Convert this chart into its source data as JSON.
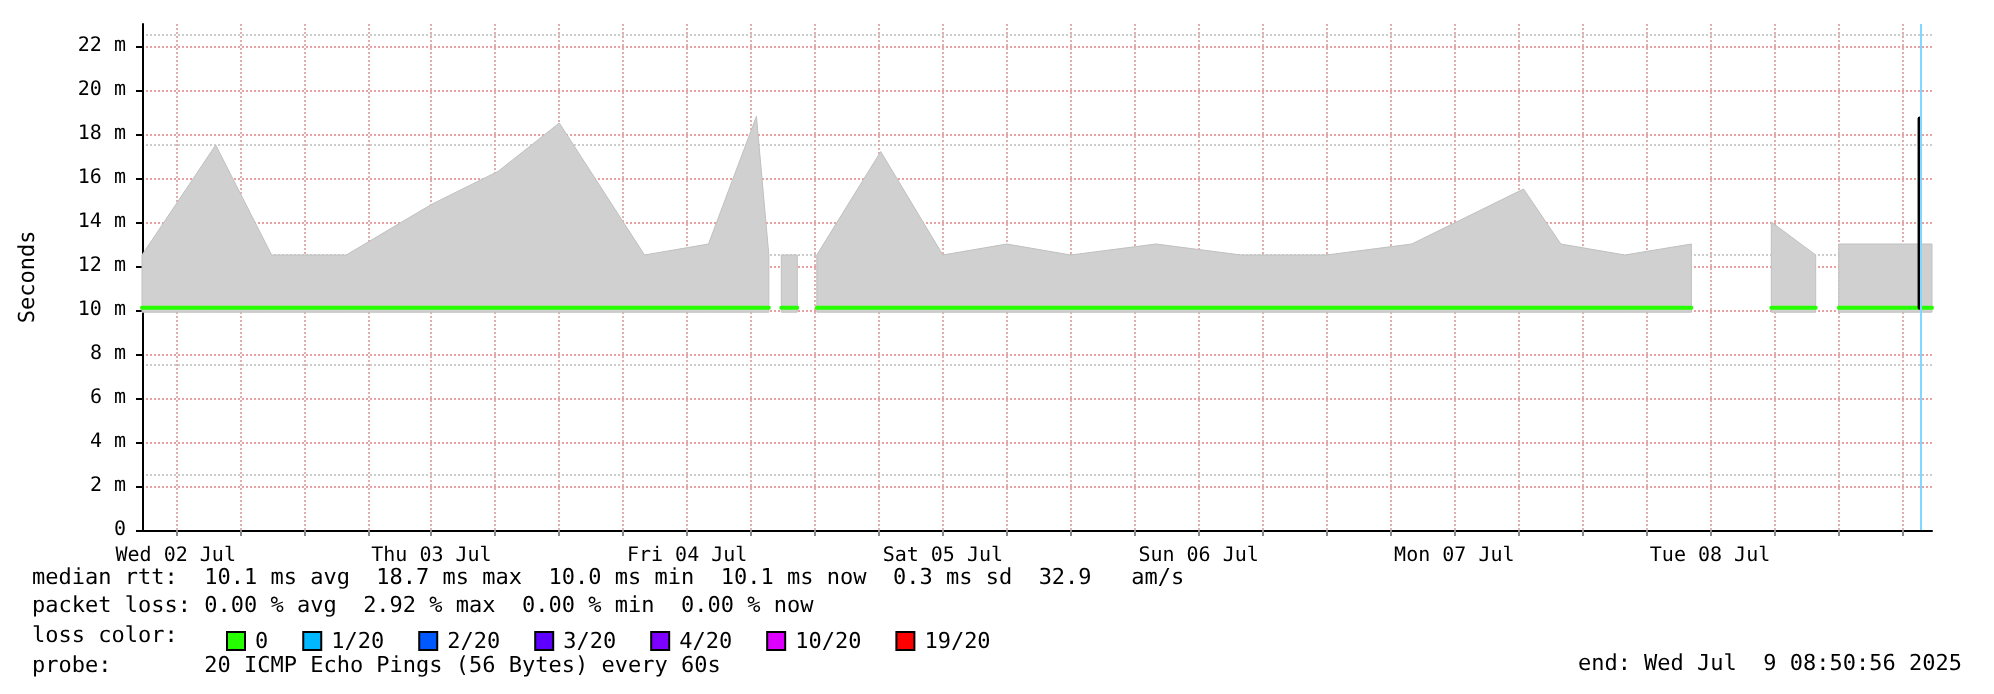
{
  "chart_data": {
    "type": "line",
    "ylabel": "Seconds",
    "xlim": [
      "2025-07-02T08:50",
      "2025-07-09T08:50"
    ],
    "xticks": [
      {
        "value": "2025-07-02T12:00",
        "label": "Wed 02 Jul"
      },
      {
        "value": "2025-07-02T18:00",
        "label": null
      },
      {
        "value": "2025-07-03T00:00",
        "label": null
      },
      {
        "value": "2025-07-03T06:00",
        "label": null
      },
      {
        "value": "2025-07-03T12:00",
        "label": "Thu 03 Jul"
      },
      {
        "value": "2025-07-03T18:00",
        "label": null
      },
      {
        "value": "2025-07-04T00:00",
        "label": null
      },
      {
        "value": "2025-07-04T06:00",
        "label": null
      },
      {
        "value": "2025-07-04T12:00",
        "label": "Fri 04 Jul"
      },
      {
        "value": "2025-07-04T18:00",
        "label": null
      },
      {
        "value": "2025-07-05T00:00",
        "label": null
      },
      {
        "value": "2025-07-05T06:00",
        "label": null
      },
      {
        "value": "2025-07-05T12:00",
        "label": "Sat 05 Jul"
      },
      {
        "value": "2025-07-05T18:00",
        "label": null
      },
      {
        "value": "2025-07-06T00:00",
        "label": null
      },
      {
        "value": "2025-07-06T06:00",
        "label": null
      },
      {
        "value": "2025-07-06T12:00",
        "label": "Sun 06 Jul"
      },
      {
        "value": "2025-07-06T18:00",
        "label": null
      },
      {
        "value": "2025-07-07T00:00",
        "label": null
      },
      {
        "value": "2025-07-07T06:00",
        "label": null
      },
      {
        "value": "2025-07-07T12:00",
        "label": "Mon 07 Jul"
      },
      {
        "value": "2025-07-07T18:00",
        "label": null
      },
      {
        "value": "2025-07-08T00:00",
        "label": null
      },
      {
        "value": "2025-07-08T06:00",
        "label": null
      },
      {
        "value": "2025-07-08T12:00",
        "label": "Tue 08 Jul"
      },
      {
        "value": "2025-07-08T18:00",
        "label": null
      },
      {
        "value": "2025-07-09T00:00",
        "label": null
      },
      {
        "value": "2025-07-09T06:00",
        "label": null
      }
    ],
    "ylim": [
      0,
      23
    ],
    "yticks": [
      {
        "value": 0,
        "label": "0"
      },
      {
        "value": 2,
        "label": "2 m"
      },
      {
        "value": 4,
        "label": "4 m"
      },
      {
        "value": 6,
        "label": "6 m"
      },
      {
        "value": 8,
        "label": "8 m"
      },
      {
        "value": 10,
        "label": "10 m"
      },
      {
        "value": 12,
        "label": "12 m"
      },
      {
        "value": 14,
        "label": "14 m"
      },
      {
        "value": 16,
        "label": "16 m"
      },
      {
        "value": 18,
        "label": "18 m"
      },
      {
        "value": 20,
        "label": "20 m"
      },
      {
        "value": 22,
        "label": "22 m"
      }
    ],
    "grid": true,
    "legend": "bottom left",
    "legend_title": "loss color:",
    "marker": "none",
    "line_style": "solid",
    "ref_lines": [
      {
        "axis": "x",
        "value": "2025-07-09T07:40",
        "color": "#80d8ff"
      }
    ],
    "series": [
      {
        "name": "0",
        "color": "#26ff00",
        "x": [
          "2025-07-02T08:50",
          "2025-07-02T15:45",
          "2025-07-02T21:00",
          "2025-07-03T04:00",
          "2025-07-03T12:00",
          "2025-07-03T18:15",
          "2025-07-04T00:00",
          "2025-07-04T08:00",
          "2025-07-04T14:00",
          "2025-07-04T18:30",
          "2025-07-04T19:40",
          "2025-07-04T20:15",
          "2025-07-04T20:50",
          "2025-07-04T22:20",
          "2025-07-04T23:15",
          "2025-07-05T00:10",
          "2025-07-05T06:10",
          "2025-07-05T12:00",
          "2025-07-05T18:00",
          "2025-07-06T00:00",
          "2025-07-06T08:00",
          "2025-07-06T16:00",
          "2025-07-07T00:00",
          "2025-07-07T08:00",
          "2025-07-07T18:30",
          "2025-07-07T22:00",
          "2025-07-08T04:00",
          "2025-07-08T10:15",
          "2025-07-08T12:00",
          "2025-07-08T17:45",
          "2025-07-08T21:55",
          "2025-07-08T22:40",
          "2025-07-09T00:05",
          "2025-07-09T08:50"
        ],
        "values": [
          10.1,
          10.1,
          10.1,
          10.1,
          10.1,
          10.1,
          10.1,
          10.1,
          10.1,
          10.1,
          10.1,
          null,
          10.1,
          10.1,
          null,
          10.1,
          10.1,
          10.1,
          10.1,
          10.1,
          10.1,
          10.1,
          10.1,
          10.1,
          10.1,
          10.1,
          10.1,
          10.1,
          null,
          10.1,
          10.1,
          null,
          10.1,
          10.1
        ],
        "lower": [
          9.9,
          9.9,
          9.9,
          9.9,
          9.9,
          9.9,
          9.9,
          9.9,
          9.9,
          9.9,
          9.9,
          null,
          9.9,
          9.9,
          null,
          9.9,
          9.9,
          9.9,
          9.9,
          9.9,
          9.9,
          9.9,
          9.9,
          9.9,
          9.9,
          9.9,
          9.9,
          9.9,
          null,
          9.9,
          9.9,
          null,
          9.9,
          9.9
        ],
        "upper": [
          12.5,
          17.5,
          12.5,
          12.5,
          14.8,
          16.3,
          18.5,
          12.5,
          13,
          18.8,
          12.5,
          null,
          12.5,
          12.5,
          null,
          12.5,
          17.2,
          12.5,
          13,
          12.5,
          13,
          12.5,
          12.5,
          13,
          15.5,
          13,
          12.5,
          13,
          null,
          14,
          12.5,
          null,
          13,
          13
        ]
      },
      {
        "color": "#000000",
        "x": [
          "2025-07-09T07:40",
          "2025-07-09T07:40"
        ],
        "values": [
          10.1,
          18.7
        ]
      },
      {
        "name": "1/20",
        "color": "#00b8ff"
      },
      {
        "name": "2/20",
        "color": "#0059ff"
      },
      {
        "name": "3/20",
        "color": "#5e00ff"
      },
      {
        "name": "4/20",
        "color": "#7e00ff"
      },
      {
        "name": "10/20",
        "color": "#dd00ff"
      },
      {
        "name": "19/20",
        "color": "#ff0000"
      }
    ],
    "annotations": [
      "median rtt:  10.1 ms avg  18.7 ms max  10.0 ms min  10.1 ms now  0.3 ms sd  32.9   am/s",
      "packet loss: 0.00 % avg  2.92 % max  0.00 % min  0.00 % now",
      "probe:       20 ICMP Echo Pings (56 Bytes) every 60s",
      "end: Wed Jul  9 08:50:56 2025"
    ]
  }
}
